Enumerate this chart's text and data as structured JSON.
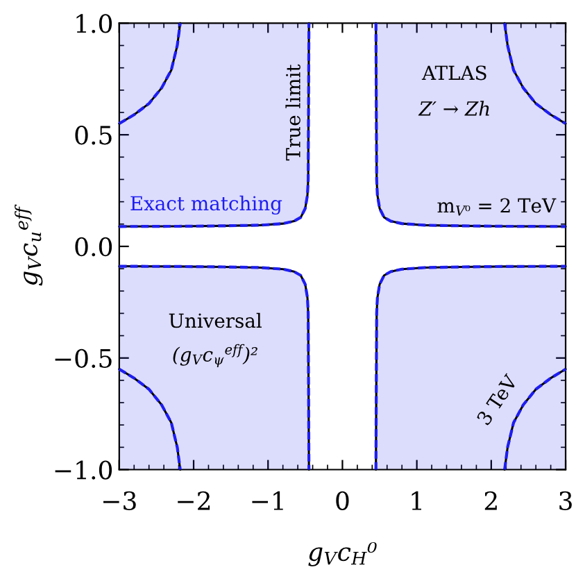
{
  "chart_data": {
    "type": "line",
    "line_style": "solid",
    "xlabel": "g$_{V}$c$_{H}$⁰",
    "ylabel": "g$_{V}$c$_{u}$$^{eff}$",
    "xlim": [
      -3,
      3
    ],
    "ylim": [
      -1,
      1
    ],
    "xticks": [
      {
        "value": -3,
        "label": "−3"
      },
      {
        "value": -2,
        "label": "−2"
      },
      {
        "value": -1,
        "label": "−1"
      },
      0,
      1,
      2,
      3
    ],
    "yticks": [
      {
        "value": -1,
        "label": "−1.0"
      },
      {
        "value": -0.5,
        "label": "−0.5"
      },
      {
        "value": 0,
        "label": "0.0"
      },
      {
        "value": 0.5,
        "label": "0.5"
      },
      {
        "value": 1,
        "label": "1.0"
      }
    ],
    "series": [
      {
        "name": "True limit",
        "color": "#000000",
        "x": [
          -3,
          -2.2,
          -1.6,
          -1.1,
          -0.8,
          -0.65,
          -0.56,
          -0.5,
          -0.47,
          -0.46,
          -0.45
        ],
        "values": [
          0.089,
          0.09,
          0.092,
          0.095,
          0.102,
          0.113,
          0.13,
          0.17,
          0.23,
          0.3,
          1
        ]
      },
      {
        "color": "#000000",
        "x": [
          0.45,
          0.46,
          0.47,
          0.5,
          0.56,
          0.65,
          0.8,
          1.1,
          1.6,
          2.2,
          3
        ],
        "values": [
          1,
          0.3,
          0.23,
          0.17,
          0.13,
          0.113,
          0.102,
          0.095,
          0.092,
          0.09,
          0.089
        ]
      },
      {
        "color": "#000000",
        "x": [
          -3,
          -2.2,
          -1.6,
          -1.1,
          -0.8,
          -0.65,
          -0.56,
          -0.5,
          -0.47,
          -0.46,
          -0.45
        ],
        "values": [
          -0.089,
          -0.09,
          -0.092,
          -0.095,
          -0.102,
          -0.113,
          -0.13,
          -0.17,
          -0.23,
          -0.3,
          -1
        ]
      },
      {
        "color": "#000000",
        "x": [
          0.45,
          0.46,
          0.47,
          0.5,
          0.56,
          0.65,
          0.8,
          1.1,
          1.6,
          2.2,
          3
        ],
        "values": [
          -1,
          -0.3,
          -0.23,
          -0.17,
          -0.13,
          -0.113,
          -0.102,
          -0.095,
          -0.092,
          -0.09,
          -0.089
        ]
      },
      {
        "color": "#000000",
        "x": [
          -3,
          -2.8,
          -2.6,
          -2.43,
          -2.3,
          -2.22,
          -2.18
        ],
        "values": [
          0.55,
          0.59,
          0.64,
          0.71,
          0.79,
          0.9,
          1
        ]
      },
      {
        "color": "#000000",
        "x": [
          2.18,
          2.22,
          2.3,
          2.43,
          2.6,
          2.8,
          3
        ],
        "values": [
          1,
          0.9,
          0.79,
          0.71,
          0.64,
          0.59,
          0.55
        ]
      },
      {
        "color": "#000000",
        "x": [
          -3,
          -2.8,
          -2.6,
          -2.43,
          -2.3,
          -2.22,
          -2.18
        ],
        "values": [
          -0.55,
          -0.59,
          -0.64,
          -0.71,
          -0.79,
          -0.9,
          -1
        ]
      },
      {
        "color": "#000000",
        "x": [
          2.18,
          2.22,
          2.3,
          2.43,
          2.6,
          2.8,
          3
        ],
        "values": [
          -1,
          -0.9,
          -0.79,
          -0.71,
          -0.64,
          -0.59,
          -0.55
        ]
      },
      {
        "name": "Exact matching",
        "color": "#1e1ef0",
        "line_style": "dashed",
        "x": [
          -3,
          -2.2,
          -1.6,
          -1.1,
          -0.8,
          -0.65,
          -0.56,
          -0.5,
          -0.47,
          -0.46,
          -0.45
        ],
        "values": [
          0.089,
          0.09,
          0.092,
          0.095,
          0.102,
          0.113,
          0.13,
          0.17,
          0.23,
          0.3,
          1
        ],
        "lower": [
          0.089,
          0.09,
          0.092,
          0.095,
          0.102,
          0.113,
          0.13,
          0.17,
          0.23,
          0.3,
          1
        ],
        "upper": [
          1,
          1,
          1,
          1,
          1,
          1,
          1,
          1,
          1,
          1,
          1
        ]
      },
      {
        "color": "#1e1ef0",
        "line_style": "dashed",
        "x": [
          0.45,
          0.46,
          0.47,
          0.5,
          0.56,
          0.65,
          0.8,
          1.1,
          1.6,
          2.2,
          3
        ],
        "values": [
          1,
          0.3,
          0.23,
          0.17,
          0.13,
          0.113,
          0.102,
          0.095,
          0.092,
          0.09,
          0.089
        ],
        "lower": [
          1,
          0.3,
          0.23,
          0.17,
          0.13,
          0.113,
          0.102,
          0.095,
          0.092,
          0.09,
          0.089
        ],
        "upper": [
          1,
          1,
          1,
          1,
          1,
          1,
          1,
          1,
          1,
          1,
          1
        ]
      },
      {
        "color": "#1e1ef0",
        "line_style": "dashed",
        "x": [
          -3,
          -2.2,
          -1.6,
          -1.1,
          -0.8,
          -0.65,
          -0.56,
          -0.5,
          -0.47,
          -0.46,
          -0.45
        ],
        "values": [
          -0.089,
          -0.09,
          -0.092,
          -0.095,
          -0.102,
          -0.113,
          -0.13,
          -0.17,
          -0.23,
          -0.3,
          -1
        ],
        "lower": [
          -1,
          -1,
          -1,
          -1,
          -1,
          -1,
          -1,
          -1,
          -1,
          -1,
          -1
        ],
        "upper": [
          -0.089,
          -0.09,
          -0.092,
          -0.095,
          -0.102,
          -0.113,
          -0.13,
          -0.17,
          -0.23,
          -0.3,
          -1
        ]
      },
      {
        "color": "#1e1ef0",
        "line_style": "dashed",
        "x": [
          0.45,
          0.46,
          0.47,
          0.5,
          0.56,
          0.65,
          0.8,
          1.1,
          1.6,
          2.2,
          3
        ],
        "values": [
          -1,
          -0.3,
          -0.23,
          -0.17,
          -0.13,
          -0.113,
          -0.102,
          -0.095,
          -0.092,
          -0.09,
          -0.089
        ],
        "lower": [
          -1,
          -1,
          -1,
          -1,
          -1,
          -1,
          -1,
          -1,
          -1,
          -1,
          -1
        ],
        "upper": [
          -1,
          -0.3,
          -0.23,
          -0.17,
          -0.13,
          -0.113,
          -0.102,
          -0.095,
          -0.092,
          -0.09,
          -0.089
        ]
      },
      {
        "color": "#1e1ef0",
        "line_style": "dashed",
        "x": [
          -3,
          -2.8,
          -2.6,
          -2.43,
          -2.3,
          -2.22,
          -2.18
        ],
        "values": [
          0.55,
          0.59,
          0.64,
          0.71,
          0.79,
          0.9,
          1
        ]
      },
      {
        "color": "#1e1ef0",
        "line_style": "dashed",
        "x": [
          2.18,
          2.22,
          2.3,
          2.43,
          2.6,
          2.8,
          3
        ],
        "values": [
          1,
          0.9,
          0.79,
          0.71,
          0.64,
          0.59,
          0.55
        ]
      },
      {
        "color": "#1e1ef0",
        "line_style": "dashed",
        "x": [
          -3,
          -2.8,
          -2.6,
          -2.43,
          -2.3,
          -2.22,
          -2.18
        ],
        "values": [
          -0.55,
          -0.59,
          -0.64,
          -0.71,
          -0.79,
          -0.9,
          -1
        ]
      },
      {
        "color": "#1e1ef0",
        "line_style": "dashed",
        "x": [
          2.18,
          2.22,
          2.3,
          2.43,
          2.6,
          2.8,
          3
        ],
        "values": [
          -1,
          -0.9,
          -0.79,
          -0.71,
          -0.64,
          -0.59,
          -0.55
        ]
      }
    ],
    "annotations": [
      "ATLAS",
      "Z′ → Zh",
      "m$_{V⁰}$ = 2 TeV",
      "Universal",
      "(g$_{V}$c$_{ψ}$$^{eff}$)²",
      {
        "text": "3 TeV",
        "x": 2.43,
        "y": -0.71
      }
    ]
  }
}
